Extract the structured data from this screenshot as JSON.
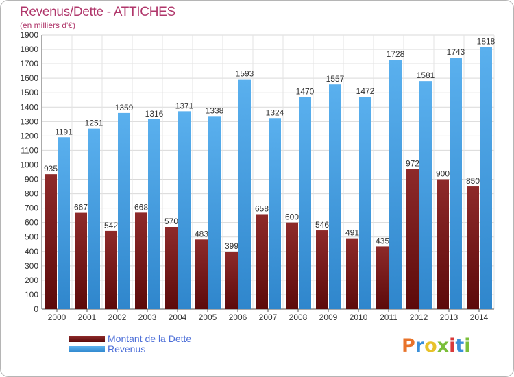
{
  "header": {
    "title": "Revenus/Dette - ATTICHES",
    "subtitle": "(en milliers d'€)"
  },
  "chart_data": {
    "type": "bar",
    "categories": [
      "2000",
      "2001",
      "2002",
      "2003",
      "2004",
      "2005",
      "2006",
      "2007",
      "2008",
      "2009",
      "2010",
      "2011",
      "2012",
      "2013",
      "2014"
    ],
    "series": [
      {
        "name": "Montant de la Dette",
        "color": "#7a1a1a",
        "values": [
          935,
          667,
          542,
          668,
          570,
          483,
          399,
          658,
          600,
          546,
          491,
          435,
          972,
          900,
          850
        ]
      },
      {
        "name": "Revenus",
        "color": "#4aa3e8",
        "values": [
          1191,
          1251,
          1359,
          1316,
          1371,
          1338,
          1593,
          1324,
          1470,
          1557,
          1472,
          1728,
          1581,
          1743,
          1818
        ]
      }
    ],
    "ylim": [
      0,
      1900
    ],
    "ytick_step": 100,
    "grid": true,
    "legend_position": "bottom-left"
  },
  "brand": {
    "letters": [
      "P",
      "r",
      "o",
      "x",
      "i",
      "t",
      "i"
    ],
    "colors": [
      "#e8732a",
      "#3a8fd9",
      "#e8c22a",
      "#7bbf3a",
      "#d93a3a",
      "#3a8fd9",
      "#7bbf3a"
    ]
  }
}
